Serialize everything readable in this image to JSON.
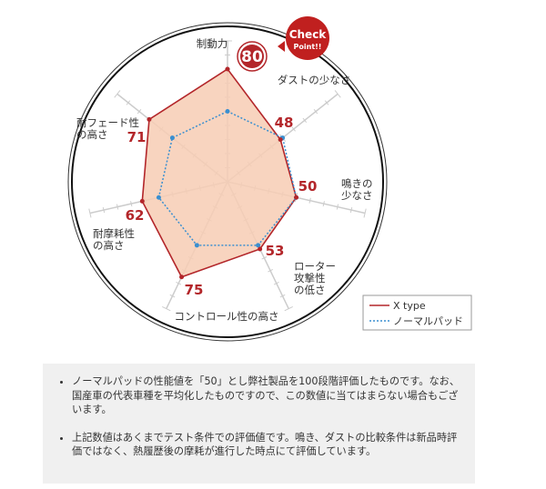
{
  "chart_data": {
    "type": "radar",
    "axes": [
      "制動力",
      "ダストの少なさ",
      "鳴きの少なさ",
      "ローター攻撃性の低さ",
      "コントロール性の高さ",
      "耐摩耗性の高さ",
      "耐フェード性の高さ"
    ],
    "axis_label_lines": [
      [
        "制動力"
      ],
      [
        "ダストの少なさ"
      ],
      [
        "鳴きの",
        "少なさ"
      ],
      [
        "ローター",
        "攻撃性",
        "の低さ"
      ],
      [
        "コントロール性の高さ"
      ],
      [
        "耐摩耗性",
        "の高さ"
      ],
      [
        "耐フェード性",
        "の高さ"
      ]
    ],
    "range": [
      0,
      100
    ],
    "series": [
      {
        "name": "X type",
        "values": [
          80,
          48,
          50,
          53,
          75,
          62,
          71
        ],
        "color": "#b3262a",
        "fill": "#f7cdb4",
        "style": "solid"
      },
      {
        "name": "ノーマルパッド",
        "values": [
          50,
          50,
          50,
          50,
          50,
          50,
          50
        ],
        "color": "#3a8fd0",
        "style": "dotted"
      }
    ],
    "legend": "bottom-right"
  },
  "badge": {
    "line1": "Check",
    "line2": "Point!!",
    "color": "#c0201f"
  },
  "notes": [
    "ノーマルパッドの性能値を「50」とし弊社製品を100段階評価したものです。なお、国産車の代表車種を平均化したものですので、この数値に当てはまらない場合もございます。",
    "上記数値はあくまでテスト条件での評価値です。鳴き、ダストの比較条件は新品時評価ではなく、熱履歴後の摩耗が進行した時点にて評価しています。"
  ]
}
